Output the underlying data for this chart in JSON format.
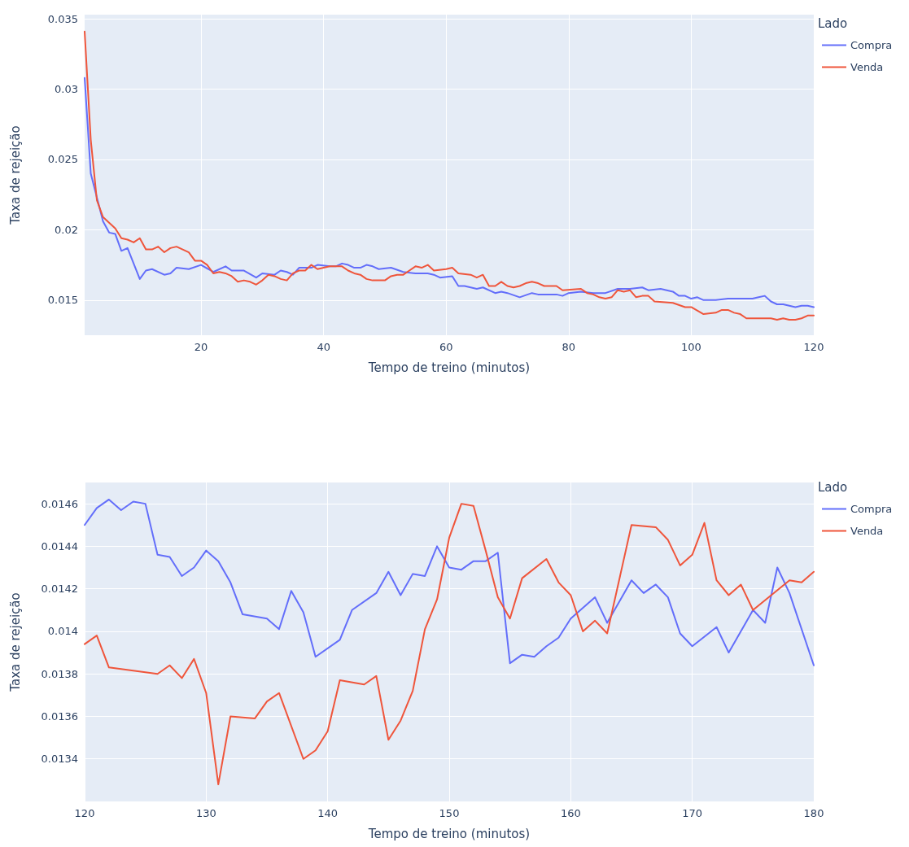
{
  "chart_data": [
    {
      "type": "line",
      "xlabel": "Tempo de treino (minutos)",
      "ylabel": "Taxa de rejeição",
      "legend_title": "Lado",
      "legend": "top right",
      "grid": true,
      "marker": "none",
      "line_style": "solid",
      "xlim": [
        1,
        120
      ],
      "xticks": [
        20,
        40,
        60,
        80,
        100,
        120
      ],
      "ylim": [
        0.0125,
        0.0353
      ],
      "yticks": [
        0.015,
        0.02,
        0.025,
        0.03,
        0.035
      ],
      "series": [
        {
          "name": "Compra",
          "color": "#636efa",
          "x": [
            1,
            2,
            3,
            4,
            5,
            6,
            7,
            8,
            10,
            11,
            12,
            14,
            15,
            16,
            18,
            20,
            22,
            24,
            25,
            27,
            29,
            30,
            32,
            33,
            34,
            35,
            36,
            38,
            39,
            41,
            42,
            43,
            44,
            45,
            46,
            47,
            48,
            49,
            51,
            53,
            55,
            57,
            58,
            59,
            61,
            62,
            63,
            65,
            66,
            68,
            69,
            70,
            72,
            74,
            75,
            78,
            79,
            80,
            82,
            84,
            86,
            88,
            90,
            92,
            93,
            95,
            97,
            98,
            99,
            100,
            101,
            102,
            104,
            106,
            107,
            109,
            110,
            111,
            112,
            113,
            114,
            115,
            117,
            118,
            119,
            120
          ],
          "values": [
            0.0308,
            0.024,
            0.0223,
            0.0206,
            0.0198,
            0.0197,
            0.0185,
            0.0187,
            0.0165,
            0.0171,
            0.0172,
            0.0168,
            0.0169,
            0.0173,
            0.0172,
            0.0175,
            0.017,
            0.0174,
            0.0171,
            0.0171,
            0.0166,
            0.0169,
            0.0168,
            0.0171,
            0.017,
            0.0168,
            0.0173,
            0.0173,
            0.0175,
            0.0174,
            0.0174,
            0.0176,
            0.0175,
            0.0173,
            0.0173,
            0.0175,
            0.0174,
            0.0172,
            0.0173,
            0.017,
            0.0169,
            0.0169,
            0.0168,
            0.0166,
            0.0167,
            0.016,
            0.016,
            0.0158,
            0.0159,
            0.0155,
            0.0156,
            0.0155,
            0.0152,
            0.0155,
            0.0154,
            0.0154,
            0.0153,
            0.0155,
            0.0156,
            0.0155,
            0.0155,
            0.0158,
            0.0158,
            0.0159,
            0.0157,
            0.0158,
            0.0156,
            0.0153,
            0.0153,
            0.0151,
            0.0152,
            0.015,
            0.015,
            0.0151,
            0.0151,
            0.0151,
            0.0151,
            0.0152,
            0.0153,
            0.0149,
            0.0147,
            0.0147,
            0.0145,
            0.0146,
            0.0146,
            0.0145
          ]
        },
        {
          "name": "Venda",
          "color": "#ef553b",
          "x": [
            1,
            2,
            3,
            4,
            5,
            6,
            7,
            8,
            9,
            10,
            11,
            12,
            13,
            14,
            15,
            16,
            17,
            18,
            19,
            20,
            21,
            22,
            23,
            24,
            25,
            26,
            27,
            28,
            29,
            30,
            31,
            32,
            33,
            34,
            35,
            36,
            37,
            38,
            39,
            40,
            41,
            43,
            44,
            45,
            46,
            47,
            48,
            49,
            50,
            51,
            52,
            53,
            54,
            55,
            56,
            57,
            58,
            60,
            61,
            62,
            64,
            65,
            66,
            67,
            68,
            69,
            70,
            71,
            72,
            73,
            74,
            75,
            76,
            78,
            79,
            82,
            83,
            84,
            85,
            86,
            87,
            88,
            89,
            90,
            91,
            92,
            93,
            94,
            97,
            99,
            100,
            102,
            104,
            105,
            106,
            107,
            108,
            109,
            112,
            113,
            114,
            115,
            116,
            117,
            118,
            119,
            120
          ],
          "values": [
            0.0341,
            0.0264,
            0.0221,
            0.0209,
            0.0205,
            0.0201,
            0.0194,
            0.0193,
            0.0191,
            0.0194,
            0.0186,
            0.0186,
            0.0188,
            0.0184,
            0.0187,
            0.0188,
            0.0186,
            0.0184,
            0.0178,
            0.0178,
            0.0175,
            0.0169,
            0.017,
            0.0169,
            0.0167,
            0.0163,
            0.0164,
            0.0163,
            0.0161,
            0.0164,
            0.0168,
            0.0167,
            0.0165,
            0.0164,
            0.0169,
            0.0171,
            0.0171,
            0.0175,
            0.0172,
            0.0173,
            0.0174,
            0.0174,
            0.0171,
            0.0169,
            0.0168,
            0.0165,
            0.0164,
            0.0164,
            0.0164,
            0.0167,
            0.0168,
            0.0168,
            0.0171,
            0.0174,
            0.0173,
            0.0175,
            0.0171,
            0.0172,
            0.0173,
            0.0169,
            0.0168,
            0.0166,
            0.0168,
            0.016,
            0.016,
            0.0163,
            0.016,
            0.0159,
            0.016,
            0.0162,
            0.0163,
            0.0162,
            0.016,
            0.016,
            0.0157,
            0.0158,
            0.0155,
            0.0154,
            0.0152,
            0.0151,
            0.0152,
            0.0157,
            0.0156,
            0.0157,
            0.0152,
            0.0153,
            0.0153,
            0.0149,
            0.0148,
            0.0145,
            0.0145,
            0.014,
            0.0141,
            0.0143,
            0.0143,
            0.0141,
            0.014,
            0.0137,
            0.0137,
            0.0137,
            0.0136,
            0.0137,
            0.0136,
            0.0136,
            0.0137,
            0.0139,
            0.0139
          ]
        }
      ]
    },
    {
      "type": "line",
      "xlabel": "Tempo de treino (minutos)",
      "ylabel": "Taxa de rejeição",
      "legend_title": "Lado",
      "legend": "top right",
      "grid": true,
      "marker": "none",
      "line_style": "solid",
      "xlim": [
        120,
        180
      ],
      "xticks": [
        120,
        130,
        140,
        150,
        160,
        170,
        180
      ],
      "ylim": [
        0.0132,
        0.0147
      ],
      "yticks": [
        0.0134,
        0.0136,
        0.0138,
        0.014,
        0.0142,
        0.0144,
        0.0146
      ],
      "series": [
        {
          "name": "Compra",
          "color": "#636efa",
          "x": [
            120,
            121,
            122,
            123,
            124,
            125,
            126,
            127,
            128,
            129,
            130,
            131,
            132,
            133,
            135,
            136,
            137,
            138,
            139,
            141,
            142,
            144,
            145,
            146,
            147,
            148,
            149,
            150,
            151,
            152,
            153,
            154,
            155,
            156,
            157,
            158,
            159,
            160,
            162,
            163,
            165,
            166,
            167,
            168,
            169,
            170,
            172,
            173,
            175,
            176,
            177,
            178,
            180
          ],
          "values": [
            0.0145,
            0.01458,
            0.01462,
            0.01457,
            0.01461,
            0.0146,
            0.01436,
            0.01435,
            0.01426,
            0.0143,
            0.01438,
            0.01433,
            0.01423,
            0.01408,
            0.01406,
            0.01401,
            0.01419,
            0.01409,
            0.01388,
            0.01396,
            0.0141,
            0.01418,
            0.01428,
            0.01417,
            0.01427,
            0.01426,
            0.0144,
            0.0143,
            0.01429,
            0.01433,
            0.01433,
            0.01437,
            0.01385,
            0.01389,
            0.01388,
            0.01393,
            0.01397,
            0.01406,
            0.01416,
            0.01404,
            0.01424,
            0.01418,
            0.01422,
            0.01416,
            0.01399,
            0.01393,
            0.01402,
            0.0139,
            0.0141,
            0.01404,
            0.0143,
            0.01418,
            0.01384
          ]
        },
        {
          "name": "Venda",
          "color": "#ef553b",
          "x": [
            120,
            121,
            122,
            126,
            127,
            128,
            129,
            130,
            131,
            132,
            134,
            135,
            136,
            138,
            139,
            140,
            141,
            143,
            144,
            145,
            146,
            147,
            148,
            149,
            150,
            151,
            152,
            153,
            154,
            155,
            156,
            158,
            159,
            160,
            161,
            162,
            163,
            165,
            167,
            168,
            169,
            170,
            171,
            172,
            173,
            174,
            175,
            178,
            179,
            180
          ],
          "values": [
            0.01394,
            0.01398,
            0.01383,
            0.0138,
            0.01384,
            0.01378,
            0.01387,
            0.01371,
            0.01328,
            0.0136,
            0.01359,
            0.01367,
            0.01371,
            0.0134,
            0.01344,
            0.01353,
            0.01377,
            0.01375,
            0.01379,
            0.01349,
            0.01358,
            0.01372,
            0.01401,
            0.01415,
            0.01444,
            0.0146,
            0.01459,
            0.01438,
            0.01416,
            0.01406,
            0.01425,
            0.01434,
            0.01423,
            0.01417,
            0.014,
            0.01405,
            0.01399,
            0.0145,
            0.01449,
            0.01443,
            0.01431,
            0.01436,
            0.01451,
            0.01424,
            0.01417,
            0.01422,
            0.0141,
            0.01424,
            0.01423,
            0.01428
          ]
        }
      ]
    }
  ]
}
